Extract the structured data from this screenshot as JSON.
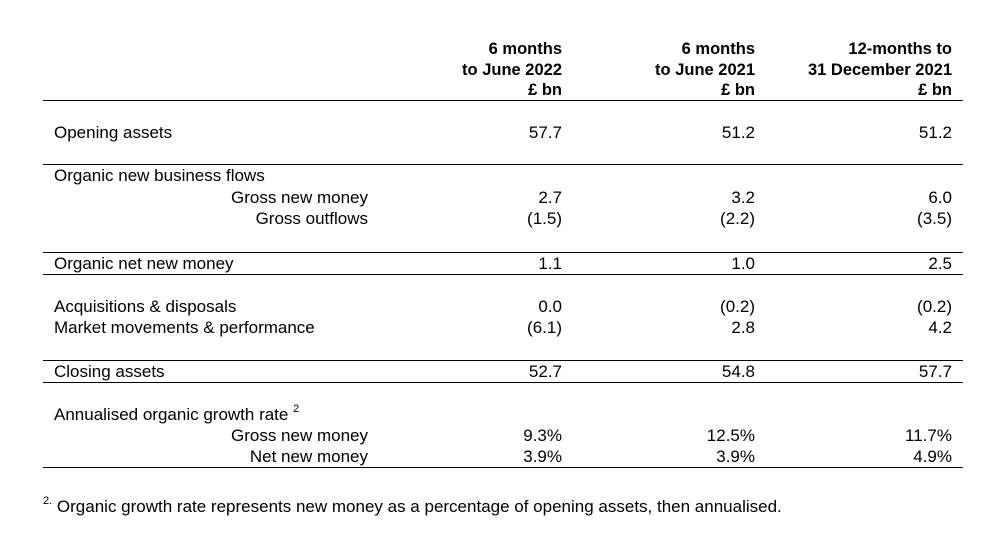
{
  "columns": [
    {
      "line1": "6 months",
      "line2": "to June 2022",
      "line3": "£ bn"
    },
    {
      "line1": "6 months",
      "line2": "to June 2021",
      "line3": "£ bn"
    },
    {
      "line1": "12-months to",
      "line2": "31 December 2021",
      "line3": "£ bn"
    }
  ],
  "rows": {
    "opening_assets": {
      "label": "Opening assets",
      "values": [
        "57.7",
        "51.2",
        "51.2"
      ]
    },
    "organic_flows": {
      "label": "Organic new business flows"
    },
    "gross_new_money": {
      "label": "Gross new money",
      "values": [
        "2.7",
        "3.2",
        "6.0"
      ]
    },
    "gross_outflows": {
      "label": "Gross outflows",
      "values": [
        "(1.5)",
        "(2.2)",
        "(3.5)"
      ]
    },
    "organic_net_new_money": {
      "label": "Organic net new money",
      "values": [
        "1.1",
        "1.0",
        "2.5"
      ]
    },
    "acquisitions": {
      "label": "Acquisitions & disposals",
      "values": [
        "0.0",
        "(0.2)",
        "(0.2)"
      ]
    },
    "market_movements": {
      "label": "Market movements & performance",
      "values": [
        "(6.1)",
        "2.8",
        "4.2"
      ]
    },
    "closing_assets": {
      "label": "Closing assets",
      "values": [
        "52.7",
        "54.8",
        "57.7"
      ]
    },
    "growth_rate": {
      "label": "Annualised organic growth rate",
      "footnote_ref": "2"
    },
    "growth_gross_new_money": {
      "label": "Gross new money",
      "values": [
        "9.3%",
        "12.5%",
        "11.7%"
      ]
    },
    "growth_net_new_money": {
      "label": "Net new money",
      "values": [
        "3.9%",
        "3.9%",
        "4.9%"
      ]
    }
  },
  "footnote": {
    "marker": "2.",
    "text": "Organic growth rate represents new money as a percentage of opening assets, then annualised."
  }
}
